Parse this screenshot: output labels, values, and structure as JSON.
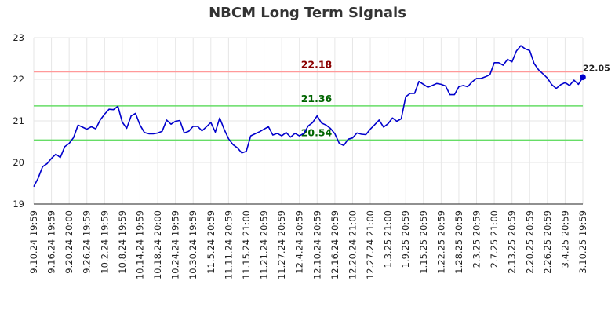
{
  "chart_data": {
    "type": "line",
    "title": "NBCM Long Term Signals",
    "xlabel": "",
    "ylabel": "",
    "ylim": [
      19,
      23
    ],
    "yticks": [
      19,
      20,
      21,
      22,
      23
    ],
    "grid": true,
    "legend": "none",
    "x_tick_labels": [
      "9.10.24 19:59",
      "9.16.24 19:59",
      "9.20.24 20:00",
      "9.26.24 19:59",
      "10.2.24 19:59",
      "10.8.24 19:59",
      "10.14.24 19:59",
      "10.18.24 20:00",
      "10.24.24 19:59",
      "10.30.24 19:59",
      "11.5.24 20:59",
      "11.11.24 20:59",
      "11.15.24 21:00",
      "11.21.24 20:59",
      "11.27.24 20:59",
      "12.4.24 20:59",
      "12.10.24 20:59",
      "12.16.24 20:59",
      "12.20.24 21:00",
      "12.27.24 21:00",
      "1.3.25 21:00",
      "1.9.25 20:59",
      "1.15.25 20:59",
      "1.22.25 20:59",
      "1.28.25 20:59",
      "2.3.25 20:59",
      "2.7.25 21:00",
      "2.13.25 20:59",
      "2.20.25 20:59",
      "2.26.25 20:59",
      "3.4.25 20:59",
      "3.10.25 19:59"
    ],
    "reference_lines": [
      {
        "label": "22.18",
        "value": 22.18,
        "color": "#ff9999",
        "text_color": "#8b0000"
      },
      {
        "label": "21.36",
        "value": 21.36,
        "color": "#66dd66",
        "text_color": "#006400"
      },
      {
        "label": "20.54",
        "value": 20.54,
        "color": "#66dd66",
        "text_color": "#006400"
      }
    ],
    "last_value_label": "22.05",
    "series": [
      {
        "color": "#0000cc",
        "values": [
          19.42,
          19.62,
          19.9,
          19.97,
          20.1,
          20.2,
          20.12,
          20.38,
          20.46,
          20.6,
          20.9,
          20.85,
          20.8,
          20.86,
          20.81,
          21.02,
          21.16,
          21.28,
          21.27,
          21.35,
          20.97,
          20.82,
          21.12,
          21.18,
          20.9,
          20.72,
          20.69,
          20.69,
          20.71,
          20.75,
          21.02,
          20.92,
          20.99,
          21.01,
          20.71,
          20.75,
          20.87,
          20.87,
          20.76,
          20.86,
          20.96,
          20.73,
          21.07,
          20.8,
          20.57,
          20.43,
          20.35,
          20.23,
          20.27,
          20.64,
          20.69,
          20.74,
          20.8,
          20.86,
          20.66,
          20.7,
          20.64,
          20.72,
          20.61,
          20.7,
          20.64,
          20.7,
          20.88,
          20.96,
          21.12,
          20.95,
          20.9,
          20.82,
          20.69,
          20.46,
          20.41,
          20.56,
          20.59,
          20.71,
          20.68,
          20.67,
          20.8,
          20.91,
          21.02,
          20.85,
          20.93,
          21.07,
          20.99,
          21.05,
          21.58,
          21.66,
          21.66,
          21.95,
          21.88,
          21.81,
          21.85,
          21.9,
          21.88,
          21.84,
          21.63,
          21.63,
          21.82,
          21.85,
          21.82,
          21.94,
          22.02,
          22.02,
          22.06,
          22.11,
          22.4,
          22.4,
          22.34,
          22.48,
          22.42,
          22.68,
          22.81,
          22.73,
          22.69,
          22.38,
          22.23,
          22.13,
          22.03,
          21.87,
          21.78,
          21.87,
          21.92,
          21.85,
          21.98,
          21.88,
          22.05
        ]
      }
    ]
  }
}
